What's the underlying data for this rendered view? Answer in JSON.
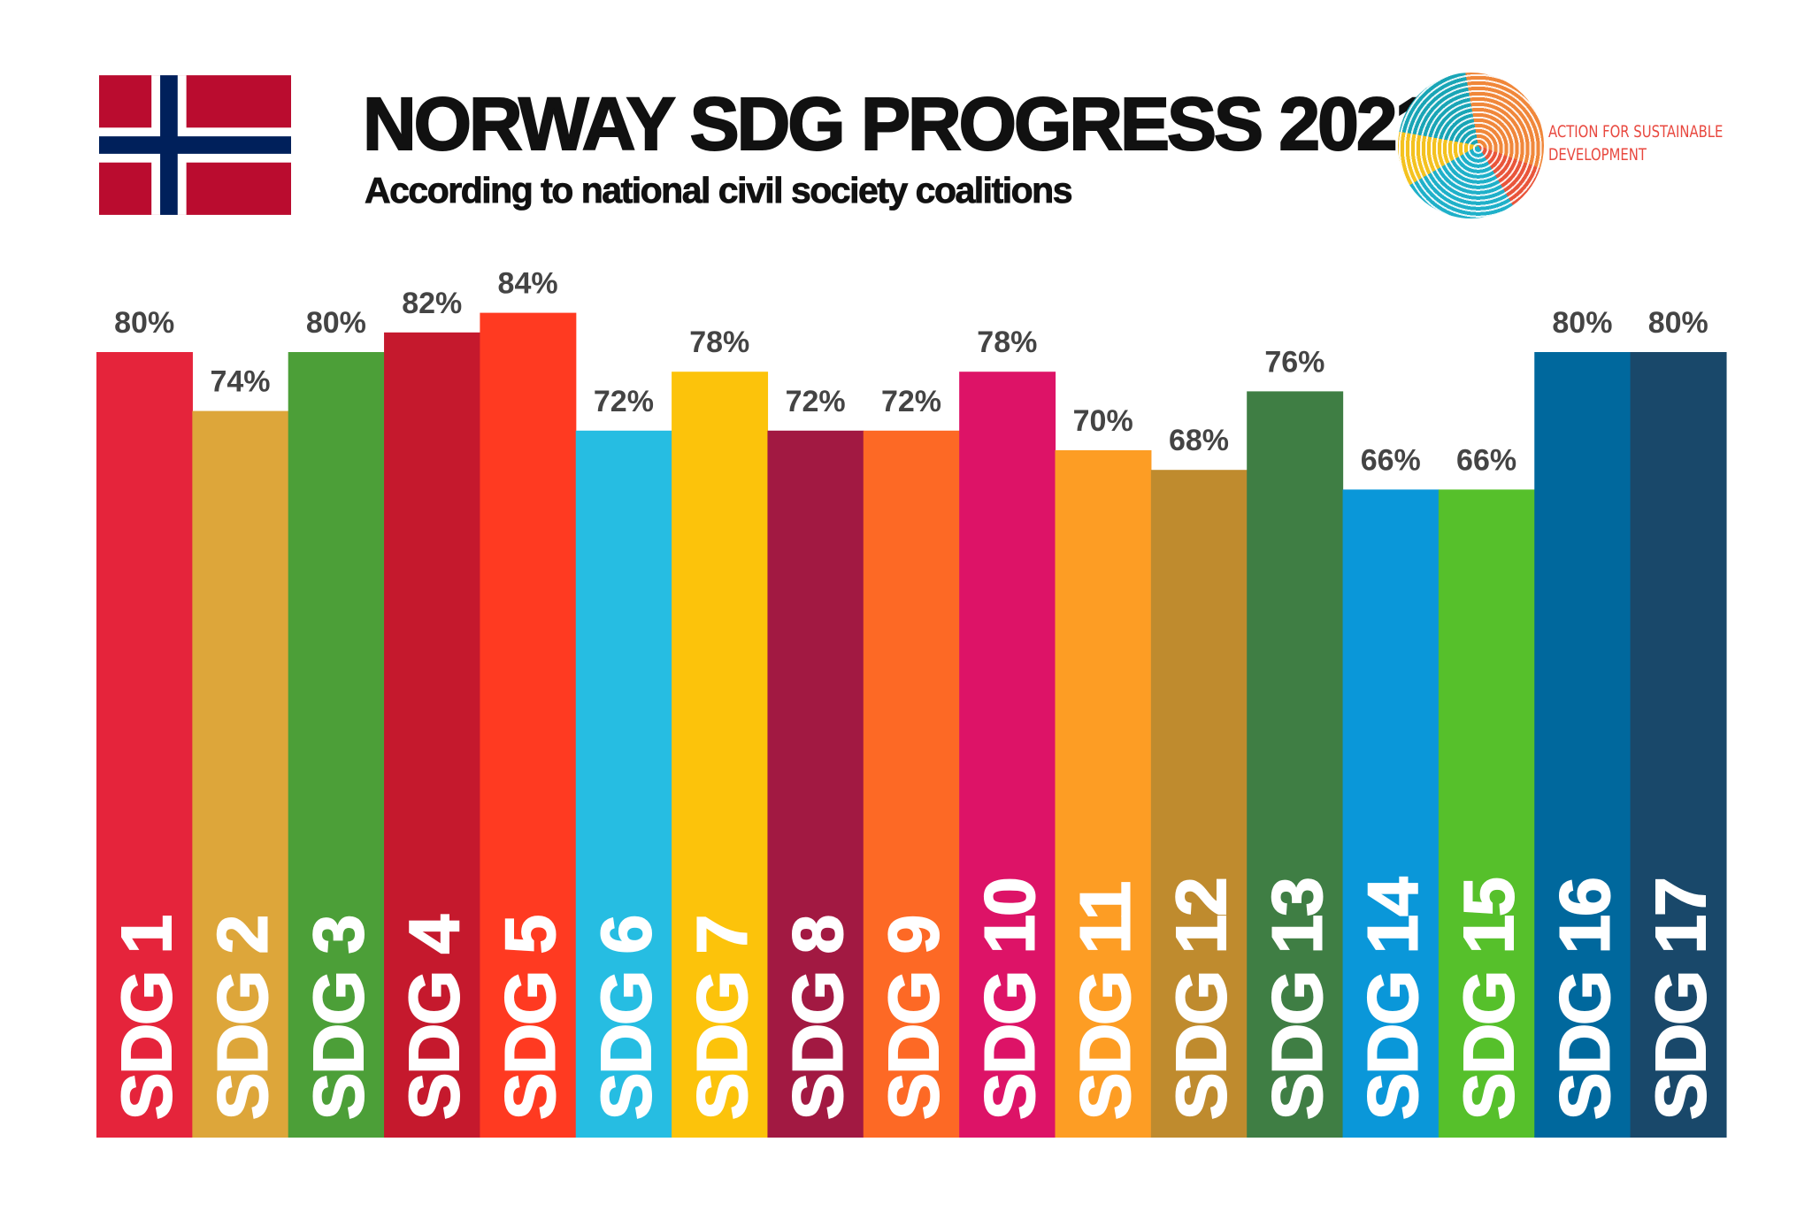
{
  "header": {
    "title": "NORWAY SDG PROGRESS 2021",
    "subtitle": "According to national civil society coalitions",
    "logo_text_line1": "ACTION FOR SUSTAINABLE",
    "logo_text_line2": "DEVELOPMENT",
    "flag": "norway-flag"
  },
  "chart_data": {
    "type": "bar",
    "title": "NORWAY SDG PROGRESS 2021",
    "subtitle": "According to national civil society coalitions",
    "categories": [
      "SDG 1",
      "SDG 2",
      "SDG 3",
      "SDG 4",
      "SDG 5",
      "SDG 6",
      "SDG 7",
      "SDG 8",
      "SDG 9",
      "SDG 10",
      "SDG 11",
      "SDG 12",
      "SDG 13",
      "SDG 14",
      "SDG 15",
      "SDG 16",
      "SDG 17"
    ],
    "values": [
      80,
      74,
      80,
      82,
      84,
      72,
      78,
      72,
      72,
      78,
      70,
      68,
      76,
      66,
      66,
      80,
      80
    ],
    "labels": [
      "80%",
      "74%",
      "80%",
      "82%",
      "84%",
      "72%",
      "78%",
      "72%",
      "72%",
      "78%",
      "70%",
      "68%",
      "76%",
      "66%",
      "66%",
      "80%",
      "80%"
    ],
    "colors": [
      "#E5243B",
      "#DDA63A",
      "#4C9F38",
      "#C5192D",
      "#FF3A21",
      "#26BDE2",
      "#FCC30B",
      "#A21942",
      "#FD6925",
      "#DD1367",
      "#FD9D24",
      "#BF8B2E",
      "#3F7E44",
      "#0A97D9",
      "#56C02B",
      "#00689D",
      "#19486A"
    ],
    "ylim": [
      0,
      100
    ],
    "unit": "%",
    "grid": false,
    "legend": "none"
  }
}
